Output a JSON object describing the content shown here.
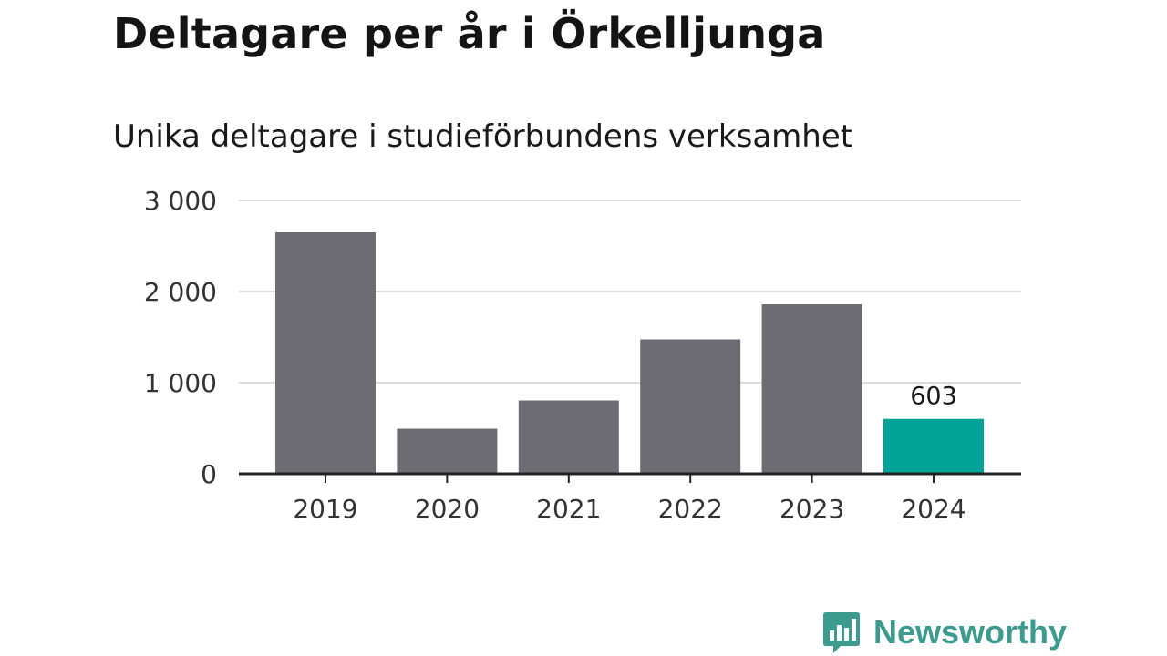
{
  "title": "Deltagare per år i Örkelljunga",
  "subtitle": "Unika deltagare i studieförbundens verksamhet",
  "brand": {
    "name": "Newsworthy",
    "icon": "bar-chart-speech-bubble-icon",
    "color": "#3d9a8e"
  },
  "colors": {
    "bar": "#6d6c72",
    "highlight": "#00a396",
    "grid": "#dcdcdc",
    "axis": "#222222"
  },
  "chart_data": {
    "type": "bar",
    "title": "Deltagare per år i Örkelljunga",
    "subtitle": "Unika deltagare i studieförbundens verksamhet",
    "xlabel": "",
    "ylabel": "",
    "categories": [
      "2019",
      "2020",
      "2021",
      "2022",
      "2023",
      "2024"
    ],
    "values": [
      2650,
      495,
      805,
      1475,
      1860,
      603
    ],
    "highlight_index": 5,
    "data_labels": [
      {
        "index": 5,
        "text": "603"
      }
    ],
    "ylim": [
      0,
      3000
    ],
    "yticks": [
      0,
      1000,
      2000,
      3000
    ],
    "ytick_labels": [
      "0",
      "1 000",
      "2 000",
      "3 000"
    ],
    "grid": true,
    "legend": "none"
  }
}
